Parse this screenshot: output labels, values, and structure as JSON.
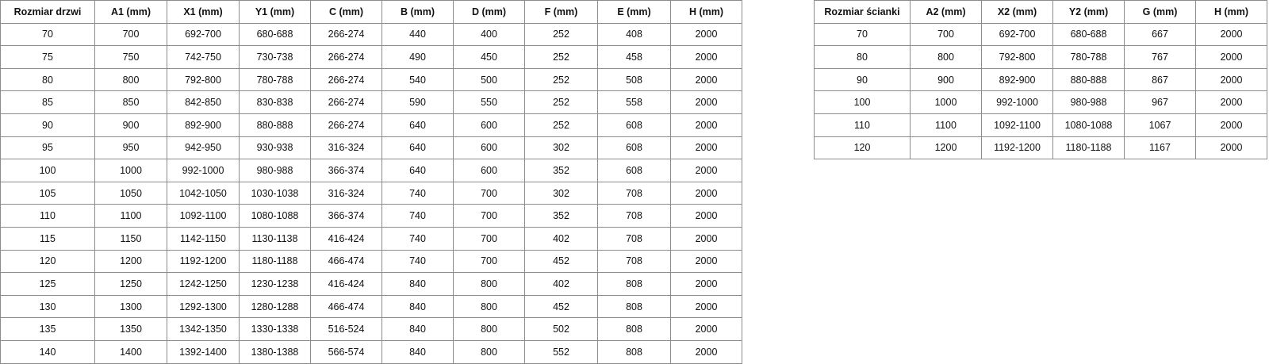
{
  "doors_table": {
    "headers": [
      "Rozmiar drzwi",
      "A1 (mm)",
      "X1 (mm)",
      "Y1 (mm)",
      "C (mm)",
      "B (mm)",
      "D (mm)",
      "F (mm)",
      "E (mm)",
      "H (mm)"
    ],
    "rows": [
      [
        "70",
        "700",
        "692-700",
        "680-688",
        "266-274",
        "440",
        "400",
        "252",
        "408",
        "2000"
      ],
      [
        "75",
        "750",
        "742-750",
        "730-738",
        "266-274",
        "490",
        "450",
        "252",
        "458",
        "2000"
      ],
      [
        "80",
        "800",
        "792-800",
        "780-788",
        "266-274",
        "540",
        "500",
        "252",
        "508",
        "2000"
      ],
      [
        "85",
        "850",
        "842-850",
        "830-838",
        "266-274",
        "590",
        "550",
        "252",
        "558",
        "2000"
      ],
      [
        "90",
        "900",
        "892-900",
        "880-888",
        "266-274",
        "640",
        "600",
        "252",
        "608",
        "2000"
      ],
      [
        "95",
        "950",
        "942-950",
        "930-938",
        "316-324",
        "640",
        "600",
        "302",
        "608",
        "2000"
      ],
      [
        "100",
        "1000",
        "992-1000",
        "980-988",
        "366-374",
        "640",
        "600",
        "352",
        "608",
        "2000"
      ],
      [
        "105",
        "1050",
        "1042-1050",
        "1030-1038",
        "316-324",
        "740",
        "700",
        "302",
        "708",
        "2000"
      ],
      [
        "110",
        "1100",
        "1092-1100",
        "1080-1088",
        "366-374",
        "740",
        "700",
        "352",
        "708",
        "2000"
      ],
      [
        "115",
        "1150",
        "1142-1150",
        "1130-1138",
        "416-424",
        "740",
        "700",
        "402",
        "708",
        "2000"
      ],
      [
        "120",
        "1200",
        "1192-1200",
        "1180-1188",
        "466-474",
        "740",
        "700",
        "452",
        "708",
        "2000"
      ],
      [
        "125",
        "1250",
        "1242-1250",
        "1230-1238",
        "416-424",
        "840",
        "800",
        "402",
        "808",
        "2000"
      ],
      [
        "130",
        "1300",
        "1292-1300",
        "1280-1288",
        "466-474",
        "840",
        "800",
        "452",
        "808",
        "2000"
      ],
      [
        "135",
        "1350",
        "1342-1350",
        "1330-1338",
        "516-524",
        "840",
        "800",
        "502",
        "808",
        "2000"
      ],
      [
        "140",
        "1400",
        "1392-1400",
        "1380-1388",
        "566-574",
        "840",
        "800",
        "552",
        "808",
        "2000"
      ]
    ]
  },
  "wall_table": {
    "headers": [
      "Rozmiar ścianki",
      "A2 (mm)",
      "X2 (mm)",
      "Y2 (mm)",
      "G (mm)",
      "H (mm)"
    ],
    "rows": [
      [
        "70",
        "700",
        "692-700",
        "680-688",
        "667",
        "2000"
      ],
      [
        "80",
        "800",
        "792-800",
        "780-788",
        "767",
        "2000"
      ],
      [
        "90",
        "900",
        "892-900",
        "880-888",
        "867",
        "2000"
      ],
      [
        "100",
        "1000",
        "992-1000",
        "980-988",
        "967",
        "2000"
      ],
      [
        "110",
        "1100",
        "1092-1100",
        "1080-1088",
        "1067",
        "2000"
      ],
      [
        "120",
        "1200",
        "1192-1200",
        "1180-1188",
        "1167",
        "2000"
      ]
    ]
  }
}
